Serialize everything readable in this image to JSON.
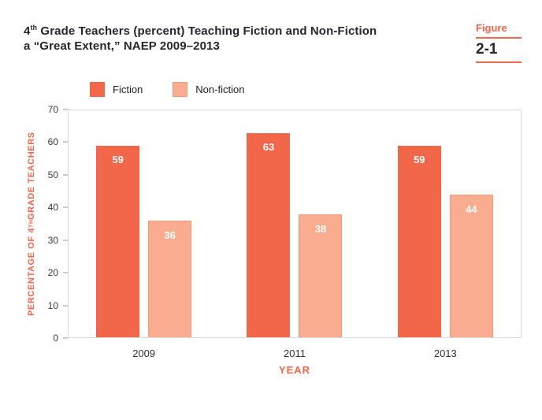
{
  "header": {
    "title_line1_prefix": "4",
    "title_line1_sup": "th",
    "title_line1_rest": " Grade Teachers (percent) Teaching Fiction and Non-Fiction",
    "title_line2": "a “Great Extent,” NAEP 2009–2013",
    "figure_label": "Figure",
    "figure_number": "2-1"
  },
  "labels": {
    "y_prefix": "PERCENTAGE OF 4",
    "y_sup": "TH",
    "y_rest": " GRADE TEACHERS"
  },
  "colors": {
    "accent": "#F2664A",
    "fiction_bar": "#F2664A",
    "nonfiction_bar": "#FAAC90",
    "nonfiction_border": "#F2997B"
  },
  "legend": [
    {
      "label": "Fiction",
      "color": "#F2664A"
    },
    {
      "label": "Non-fiction",
      "color": "#FAAC90",
      "border": "#F2997B"
    }
  ],
  "chart_data": {
    "type": "bar",
    "title": "4th Grade Teachers (percent) Teaching Fiction and Non-Fiction a “Great Extent,” NAEP 2009–2013",
    "categories": [
      "2009",
      "2011",
      "2013"
    ],
    "series": [
      {
        "name": "Fiction",
        "values": [
          59,
          63,
          59
        ],
        "color": "#F2664A"
      },
      {
        "name": "Non-fiction",
        "values": [
          36,
          38,
          44
        ],
        "color": "#FAAC90",
        "border": "#F2997B"
      }
    ],
    "xlabel": "YEAR",
    "ylabel": "PERCENTAGE OF 4TH GRADE TEACHERS",
    "ylim": [
      0,
      70
    ],
    "yticks": [
      0,
      10,
      20,
      30,
      40,
      50,
      60,
      70
    ],
    "grid": false,
    "legend_position": "top",
    "value_labels": "inside-top"
  }
}
